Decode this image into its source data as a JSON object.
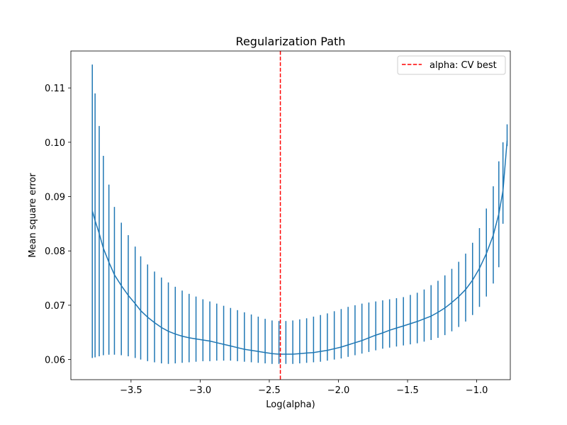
{
  "chart_data": {
    "type": "line",
    "title": "Regularization Path",
    "xlabel": "Log(alpha)",
    "ylabel": "Mean square error",
    "xlim": [
      -3.935,
      -0.757
    ],
    "ylim": [
      0.0563,
      0.1168
    ],
    "x_ticks": [
      -3.5,
      -3.0,
      -2.5,
      -2.0,
      -1.5,
      -1.0
    ],
    "x_tick_labels": [
      "−3.5",
      "−3.0",
      "−2.5",
      "−2.0",
      "−1.5",
      "−1.0"
    ],
    "y_ticks": [
      0.06,
      0.07,
      0.08,
      0.09,
      0.1,
      0.11
    ],
    "y_tick_labels": [
      "0.06",
      "0.07",
      "0.08",
      "0.09",
      "0.10",
      "0.11"
    ],
    "grid": false,
    "legend": {
      "position": "top-right",
      "entries": [
        "alpha: CV best"
      ]
    },
    "series": [
      {
        "color": "#1f77b4",
        "x": [
          -3.78,
          -3.76,
          -3.73,
          -3.7,
          -3.66,
          -3.62,
          -3.57,
          -3.52,
          -3.47,
          -3.43,
          -3.38,
          -3.33,
          -3.28,
          -3.23,
          -3.18,
          -3.13,
          -3.08,
          -3.03,
          -2.98,
          -2.93,
          -2.88,
          -2.83,
          -2.78,
          -2.73,
          -2.68,
          -2.63,
          -2.58,
          -2.53,
          -2.48,
          -2.43,
          -2.38,
          -2.33,
          -2.28,
          -2.23,
          -2.18,
          -2.13,
          -2.08,
          -2.03,
          -1.98,
          -1.93,
          -1.88,
          -1.83,
          -1.78,
          -1.73,
          -1.68,
          -1.63,
          -1.58,
          -1.53,
          -1.48,
          -1.43,
          -1.38,
          -1.33,
          -1.28,
          -1.23,
          -1.18,
          -1.13,
          -1.08,
          -1.03,
          -0.98,
          -0.93,
          -0.88,
          -0.84,
          -0.81,
          -0.78
        ],
        "mean": [
          0.0874,
          0.0856,
          0.0832,
          0.0805,
          0.0779,
          0.0756,
          0.0736,
          0.0718,
          0.0703,
          0.069,
          0.0678,
          0.0668,
          0.0659,
          0.0652,
          0.0647,
          0.0643,
          0.064,
          0.0638,
          0.0636,
          0.0634,
          0.0631,
          0.0628,
          0.0625,
          0.0622,
          0.0619,
          0.0617,
          0.0615,
          0.0613,
          0.0611,
          0.061,
          0.061,
          0.061,
          0.0611,
          0.0612,
          0.0613,
          0.0615,
          0.0617,
          0.062,
          0.0623,
          0.0627,
          0.0631,
          0.0635,
          0.064,
          0.0645,
          0.0649,
          0.0654,
          0.0658,
          0.0662,
          0.0666,
          0.067,
          0.0675,
          0.068,
          0.0687,
          0.0695,
          0.0705,
          0.0716,
          0.0729,
          0.0746,
          0.0768,
          0.0795,
          0.0829,
          0.0868,
          0.0911,
          0.1003
        ],
        "lower": [
          0.0603,
          0.0604,
          0.0606,
          0.0608,
          0.0609,
          0.0609,
          0.0608,
          0.0606,
          0.0603,
          0.06,
          0.0597,
          0.0595,
          0.0593,
          0.0592,
          0.0593,
          0.0594,
          0.0595,
          0.0596,
          0.0597,
          0.0597,
          0.0598,
          0.0598,
          0.0598,
          0.0597,
          0.0596,
          0.0595,
          0.0594,
          0.0593,
          0.0592,
          0.0592,
          0.0592,
          0.0592,
          0.0593,
          0.0594,
          0.0595,
          0.0596,
          0.0598,
          0.06,
          0.0602,
          0.0605,
          0.0608,
          0.0611,
          0.0614,
          0.0617,
          0.062,
          0.0622,
          0.0624,
          0.0626,
          0.0628,
          0.063,
          0.0633,
          0.0636,
          0.064,
          0.0645,
          0.0652,
          0.066,
          0.067,
          0.0682,
          0.0697,
          0.0716,
          0.074,
          0.077,
          0.085,
          0.0993
        ],
        "upper": [
          0.1143,
          0.109,
          0.103,
          0.0975,
          0.0922,
          0.0881,
          0.0852,
          0.0829,
          0.0808,
          0.079,
          0.0775,
          0.0762,
          0.0751,
          0.0742,
          0.0734,
          0.0727,
          0.0721,
          0.0716,
          0.0711,
          0.0707,
          0.0703,
          0.0699,
          0.0695,
          0.0691,
          0.0687,
          0.0683,
          0.0679,
          0.0675,
          0.0672,
          0.0671,
          0.0671,
          0.0672,
          0.0674,
          0.0676,
          0.0679,
          0.0682,
          0.0685,
          0.0689,
          0.0693,
          0.0697,
          0.07,
          0.0703,
          0.0705,
          0.0707,
          0.0709,
          0.0711,
          0.0713,
          0.0715,
          0.0719,
          0.0723,
          0.0729,
          0.0737,
          0.0745,
          0.0755,
          0.0767,
          0.078,
          0.0795,
          0.0815,
          0.0842,
          0.0878,
          0.0919,
          0.0965,
          0.1,
          0.1033
        ]
      }
    ],
    "vline": {
      "x": -2.42,
      "color": "#ff0000",
      "style": "dashed",
      "label": "alpha: CV best"
    }
  }
}
